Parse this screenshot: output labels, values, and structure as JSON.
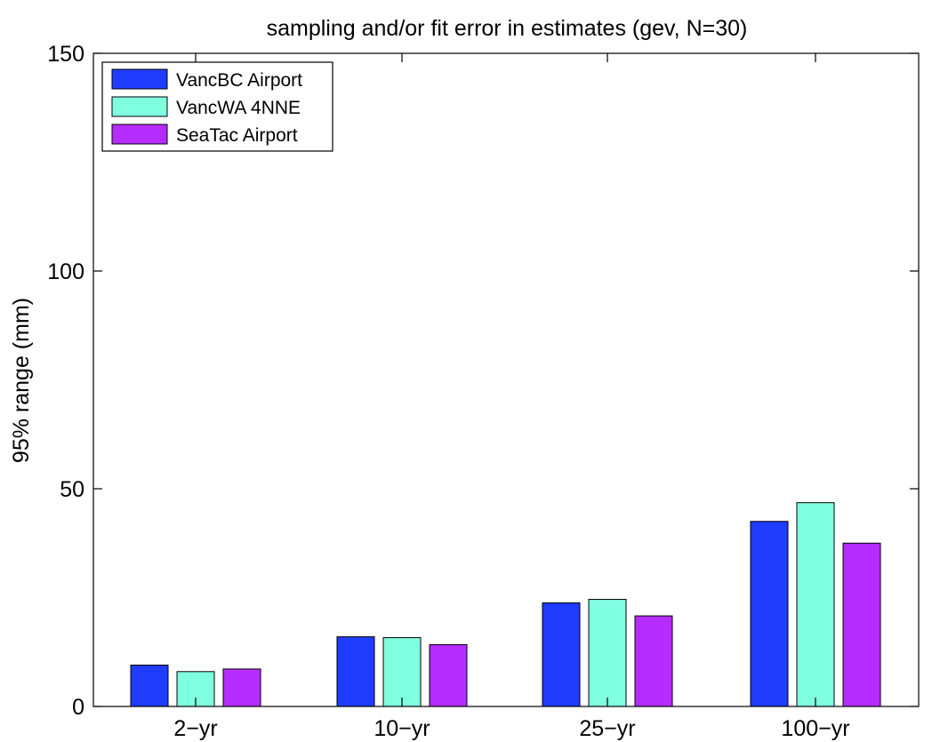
{
  "chart_data": {
    "type": "bar",
    "title": "sampling and/or fit error in estimates (gev, N=30)",
    "xlabel": "",
    "ylabel": "95% range (mm)",
    "categories": [
      "2−yr",
      "10−yr",
      "25−yr",
      "100−yr"
    ],
    "ylim": [
      0,
      150
    ],
    "yticks": [
      0,
      50,
      100,
      150
    ],
    "legend_position": "top-left",
    "grid": false,
    "series": [
      {
        "name": "VancBC Airport",
        "color": "#1f3cff",
        "values": [
          9.5,
          16.0,
          23.8,
          42.5
        ]
      },
      {
        "name": "VancWA 4NNE",
        "color": "#7fffdf",
        "values": [
          8.0,
          15.8,
          24.6,
          46.8
        ]
      },
      {
        "name": "SeaTac Airport",
        "color": "#b52cff",
        "values": [
          8.6,
          14.2,
          20.8,
          37.5
        ]
      }
    ]
  }
}
